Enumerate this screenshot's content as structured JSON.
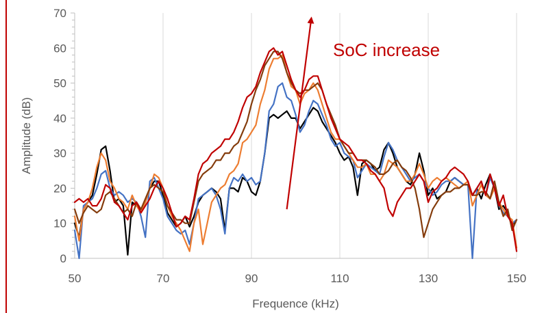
{
  "chart_data": {
    "type": "line",
    "title": "",
    "xlabel": "Frequence (kHz)",
    "ylabel": "Amplitude (dB)",
    "xlim": [
      50,
      150
    ],
    "ylim": [
      0,
      70
    ],
    "x_ticks": [
      "50",
      "70",
      "90",
      "110",
      "130",
      "150"
    ],
    "y_ticks": [
      "0",
      "10",
      "20",
      "30",
      "40",
      "50",
      "60",
      "70"
    ],
    "grid": "vertical",
    "legend": "none",
    "annotation": {
      "text": "SoC increase",
      "color": "#c00000",
      "arrow_from": [
        98,
        14
      ],
      "arrow_to": [
        103.5,
        68
      ]
    },
    "series": [
      {
        "color": "#000000",
        "x": [
          50,
          51,
          52,
          53,
          54,
          55,
          56,
          57,
          58,
          59,
          60,
          61,
          62,
          63,
          64,
          65,
          66,
          67,
          68,
          69,
          70,
          71,
          72,
          73,
          74,
          75,
          76,
          77,
          78,
          79,
          80,
          81,
          82,
          83,
          84,
          85,
          86,
          87,
          88,
          89,
          90,
          91,
          92,
          93,
          94,
          95,
          96,
          97,
          98,
          99,
          100,
          101,
          102,
          103,
          104,
          105,
          106,
          107,
          108,
          109,
          110,
          111,
          112,
          113,
          114,
          115,
          116,
          117,
          118,
          119,
          120,
          121,
          122,
          123,
          124,
          125,
          126,
          127,
          128,
          129,
          130,
          131,
          132,
          133,
          134,
          135,
          136,
          137,
          138,
          139,
          140,
          141,
          142,
          143,
          144,
          145,
          146,
          147,
          148,
          149,
          150
        ],
        "y": [
          10,
          6,
          14,
          16,
          18,
          24,
          31,
          32,
          25,
          16,
          17,
          15,
          1,
          16,
          15,
          14,
          16,
          20,
          22,
          22,
          18,
          13,
          11,
          9,
          10,
          12,
          9,
          12,
          16,
          18,
          19,
          20,
          19,
          17,
          8,
          20,
          20,
          19,
          23,
          22,
          19,
          18,
          22,
          30,
          40,
          41,
          40,
          41,
          42,
          40,
          40,
          37,
          39,
          41,
          43,
          42,
          39,
          37,
          35,
          33,
          30,
          28,
          29,
          26,
          18,
          27,
          28,
          27,
          25,
          26,
          31,
          33,
          30,
          26,
          24,
          22,
          21,
          24,
          30,
          25,
          18,
          20,
          17,
          18,
          19,
          22,
          23,
          22,
          21,
          21,
          18,
          20,
          17,
          21,
          24,
          20,
          14,
          15,
          13,
          9,
          11
        ]
      },
      {
        "color": "#4472c4",
        "x": [
          50,
          51,
          52,
          53,
          54,
          55,
          56,
          57,
          58,
          59,
          60,
          61,
          62,
          63,
          64,
          65,
          66,
          67,
          68,
          69,
          70,
          71,
          72,
          73,
          74,
          75,
          76,
          77,
          78,
          79,
          80,
          81,
          82,
          83,
          84,
          85,
          86,
          87,
          88,
          89,
          90,
          91,
          92,
          93,
          94,
          95,
          96,
          97,
          98,
          99,
          100,
          101,
          102,
          103,
          104,
          105,
          106,
          107,
          108,
          109,
          110,
          111,
          112,
          113,
          114,
          115,
          116,
          117,
          118,
          119,
          120,
          121,
          122,
          123,
          124,
          125,
          126,
          127,
          128,
          129,
          130,
          131,
          132,
          133,
          134,
          135,
          136,
          137,
          138,
          139,
          140,
          141,
          142,
          143,
          144,
          145,
          146,
          147,
          148,
          149,
          150
        ],
        "y": [
          8,
          0,
          15,
          16,
          17,
          20,
          24,
          25,
          20,
          18,
          19,
          18,
          16,
          17,
          16,
          12,
          6,
          22,
          23,
          20,
          17,
          12,
          10,
          8,
          7,
          8,
          4,
          10,
          17,
          18,
          19,
          20,
          18,
          14,
          7,
          20,
          23,
          22,
          24,
          22,
          23,
          21,
          22,
          30,
          42,
          44,
          49,
          50,
          46,
          45,
          41,
          36,
          38,
          42,
          45,
          44,
          41,
          38,
          34,
          32,
          33,
          30,
          29,
          28,
          23,
          25,
          27,
          26,
          25,
          24,
          29,
          33,
          31,
          28,
          26,
          24,
          22,
          23,
          24,
          22,
          20,
          18,
          19,
          21,
          22,
          22,
          23,
          22,
          21,
          21,
          0,
          20,
          22,
          18,
          23,
          20,
          15,
          13,
          12,
          10,
          11
        ]
      },
      {
        "color": "#ed7d31",
        "x": [
          50,
          51,
          52,
          53,
          54,
          55,
          56,
          57,
          58,
          59,
          60,
          61,
          62,
          63,
          64,
          65,
          66,
          67,
          68,
          69,
          70,
          71,
          72,
          73,
          74,
          75,
          76,
          77,
          78,
          79,
          80,
          81,
          82,
          83,
          84,
          85,
          86,
          87,
          88,
          89,
          90,
          91,
          92,
          93,
          94,
          95,
          96,
          97,
          98,
          99,
          100,
          101,
          102,
          103,
          104,
          105,
          106,
          107,
          108,
          109,
          110,
          111,
          112,
          113,
          114,
          115,
          116,
          117,
          118,
          119,
          120,
          121,
          122,
          123,
          124,
          125,
          126,
          127,
          128,
          129,
          130,
          131,
          132,
          133,
          134,
          135,
          136,
          137,
          138,
          139,
          140,
          141,
          142,
          143,
          144,
          145,
          146,
          147,
          148,
          149,
          150
        ],
        "y": [
          12,
          5,
          14,
          16,
          20,
          26,
          30,
          28,
          22,
          20,
          17,
          16,
          14,
          18,
          15,
          13,
          16,
          20,
          24,
          23,
          20,
          15,
          12,
          10,
          8,
          5,
          2,
          10,
          14,
          4,
          10,
          16,
          18,
          20,
          21,
          24,
          25,
          27,
          33,
          34,
          36,
          38,
          44,
          48,
          54,
          57,
          57,
          58,
          53,
          49,
          48,
          44,
          47,
          48,
          50,
          48,
          44,
          40,
          36,
          34,
          34,
          32,
          30,
          28,
          26,
          26,
          27,
          24,
          24,
          22,
          24,
          28,
          27,
          26,
          24,
          22,
          22,
          24,
          27,
          24,
          20,
          22,
          23,
          22,
          23,
          22,
          21,
          20,
          21,
          22,
          15,
          18,
          21,
          18,
          17,
          20,
          16,
          14,
          12,
          11,
          3
        ]
      },
      {
        "color": "#843c0c",
        "x": [
          50,
          51,
          52,
          53,
          54,
          55,
          56,
          57,
          58,
          59,
          60,
          61,
          62,
          63,
          64,
          65,
          66,
          67,
          68,
          69,
          70,
          71,
          72,
          73,
          74,
          75,
          76,
          77,
          78,
          79,
          80,
          81,
          82,
          83,
          84,
          85,
          86,
          87,
          88,
          89,
          90,
          91,
          92,
          93,
          94,
          95,
          96,
          97,
          98,
          99,
          100,
          101,
          102,
          103,
          104,
          105,
          106,
          107,
          108,
          109,
          110,
          111,
          112,
          113,
          114,
          115,
          116,
          117,
          118,
          119,
          120,
          121,
          122,
          123,
          124,
          125,
          126,
          127,
          128,
          129,
          130,
          131,
          132,
          133,
          134,
          135,
          136,
          137,
          138,
          139,
          140,
          141,
          142,
          143,
          144,
          145,
          146,
          147,
          148,
          149,
          150
        ],
        "y": [
          14,
          10,
          13,
          15,
          14,
          13,
          14,
          18,
          19,
          17,
          15,
          13,
          14,
          12,
          16,
          14,
          17,
          20,
          21,
          20,
          19,
          15,
          13,
          11,
          11,
          10,
          10,
          16,
          22,
          24,
          25,
          26,
          28,
          28,
          30,
          30,
          32,
          33,
          36,
          39,
          44,
          48,
          51,
          55,
          57,
          59,
          59,
          57,
          53,
          50,
          48,
          47,
          48,
          48,
          49,
          50,
          48,
          44,
          41,
          38,
          34,
          32,
          30,
          30,
          28,
          28,
          28,
          27,
          26,
          24,
          24,
          25,
          27,
          28,
          26,
          25,
          23,
          20,
          14,
          6,
          10,
          14,
          16,
          18,
          19,
          19,
          20,
          20,
          21,
          21,
          18,
          18,
          19,
          19,
          17,
          22,
          16,
          12,
          14,
          8,
          11
        ]
      },
      {
        "color": "#c00000",
        "x": [
          50,
          51,
          52,
          53,
          54,
          55,
          56,
          57,
          58,
          59,
          60,
          61,
          62,
          63,
          64,
          65,
          66,
          67,
          68,
          69,
          70,
          71,
          72,
          73,
          74,
          75,
          76,
          77,
          78,
          79,
          80,
          81,
          82,
          83,
          84,
          85,
          86,
          87,
          88,
          89,
          90,
          91,
          92,
          93,
          94,
          95,
          96,
          97,
          98,
          99,
          100,
          101,
          102,
          103,
          104,
          105,
          106,
          107,
          108,
          109,
          110,
          111,
          112,
          113,
          114,
          115,
          116,
          117,
          118,
          119,
          120,
          121,
          122,
          123,
          124,
          125,
          126,
          127,
          128,
          129,
          130,
          131,
          132,
          133,
          134,
          135,
          136,
          137,
          138,
          139,
          140,
          141,
          142,
          143,
          144,
          145,
          146,
          147,
          148,
          149,
          150
        ],
        "y": [
          16,
          17,
          16,
          17,
          15,
          15,
          17,
          21,
          20,
          16,
          15,
          13,
          11,
          15,
          16,
          13,
          15,
          17,
          20,
          22,
          20,
          17,
          13,
          9,
          10,
          12,
          11,
          17,
          24,
          27,
          28,
          30,
          31,
          32,
          34,
          34,
          36,
          39,
          43,
          46,
          47,
          49,
          53,
          56,
          59,
          60,
          58,
          59,
          55,
          51,
          48,
          46,
          48,
          51,
          52,
          52,
          48,
          44,
          40,
          37,
          34,
          33,
          32,
          30,
          28,
          28,
          27,
          25,
          24,
          22,
          20,
          14,
          12,
          16,
          18,
          20,
          20,
          22,
          24,
          22,
          16,
          19,
          20,
          22,
          23,
          25,
          26,
          25,
          24,
          22,
          18,
          20,
          22,
          18,
          24,
          20,
          15,
          18,
          12,
          10,
          2
        ]
      }
    ]
  }
}
